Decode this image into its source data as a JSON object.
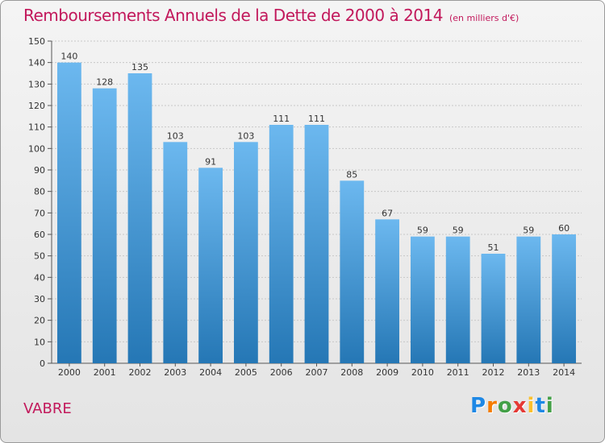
{
  "title": "Remboursements Annuels de la Dette de 2000 à 2014",
  "subtitle": "(en milliers d'€)",
  "commune": "VABRE",
  "logo": {
    "letters": [
      "P",
      "r",
      "o",
      "x",
      "i",
      "t",
      "i"
    ],
    "colors": [
      "#1e88e5",
      "#f57c00",
      "#43a047",
      "#e53935",
      "#fbc02d",
      "#1e88e5",
      "#43a047"
    ]
  },
  "colors": {
    "accent": "#c2185b",
    "bar_light": "#6cb8ef",
    "bar_dark": "#2577b5"
  },
  "chart_data": {
    "type": "bar",
    "categories": [
      "2000",
      "2001",
      "2002",
      "2003",
      "2004",
      "2005",
      "2006",
      "2007",
      "2008",
      "2009",
      "2010",
      "2011",
      "2012",
      "2013",
      "2014"
    ],
    "values": [
      140,
      128,
      135,
      103,
      91,
      103,
      111,
      111,
      85,
      67,
      59,
      59,
      51,
      59,
      60
    ],
    "ylim": [
      0,
      150
    ],
    "yticks": [
      0,
      10,
      20,
      30,
      40,
      50,
      60,
      70,
      80,
      90,
      100,
      110,
      120,
      130,
      140,
      150
    ],
    "grid": true,
    "data_labels": true
  }
}
